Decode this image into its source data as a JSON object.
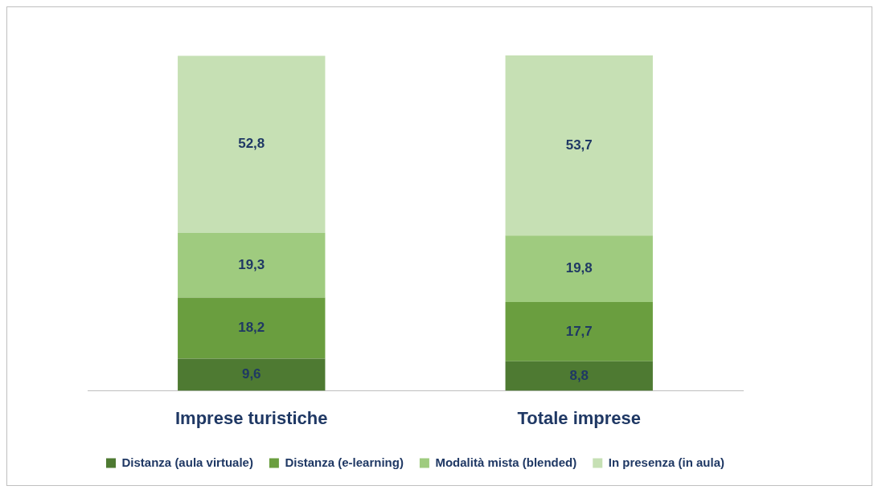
{
  "chart_data": {
    "type": "bar",
    "stacked": true,
    "categories": [
      "Imprese turistiche",
      "Totale imprese"
    ],
    "series": [
      {
        "name": "Distanza (aula virtuale)",
        "color": "#4e7a32",
        "values": [
          9.6,
          8.8
        ],
        "value_labels": [
          "9,6",
          "8,8"
        ]
      },
      {
        "name": "Distanza (e-learning)",
        "color": "#6a9e3f",
        "values": [
          18.2,
          17.7
        ],
        "value_labels": [
          "18,2",
          "17,7"
        ]
      },
      {
        "name": "Modalità mista (blended)",
        "color": "#9fcb7f",
        "values": [
          19.3,
          19.8
        ],
        "value_labels": [
          "19,3",
          "19,8"
        ]
      },
      {
        "name": "In presenza (in aula)",
        "color": "#c6e0b4",
        "values": [
          52.8,
          53.7
        ],
        "value_labels": [
          "52,8",
          "53,7"
        ]
      }
    ],
    "legend": "bottom"
  }
}
